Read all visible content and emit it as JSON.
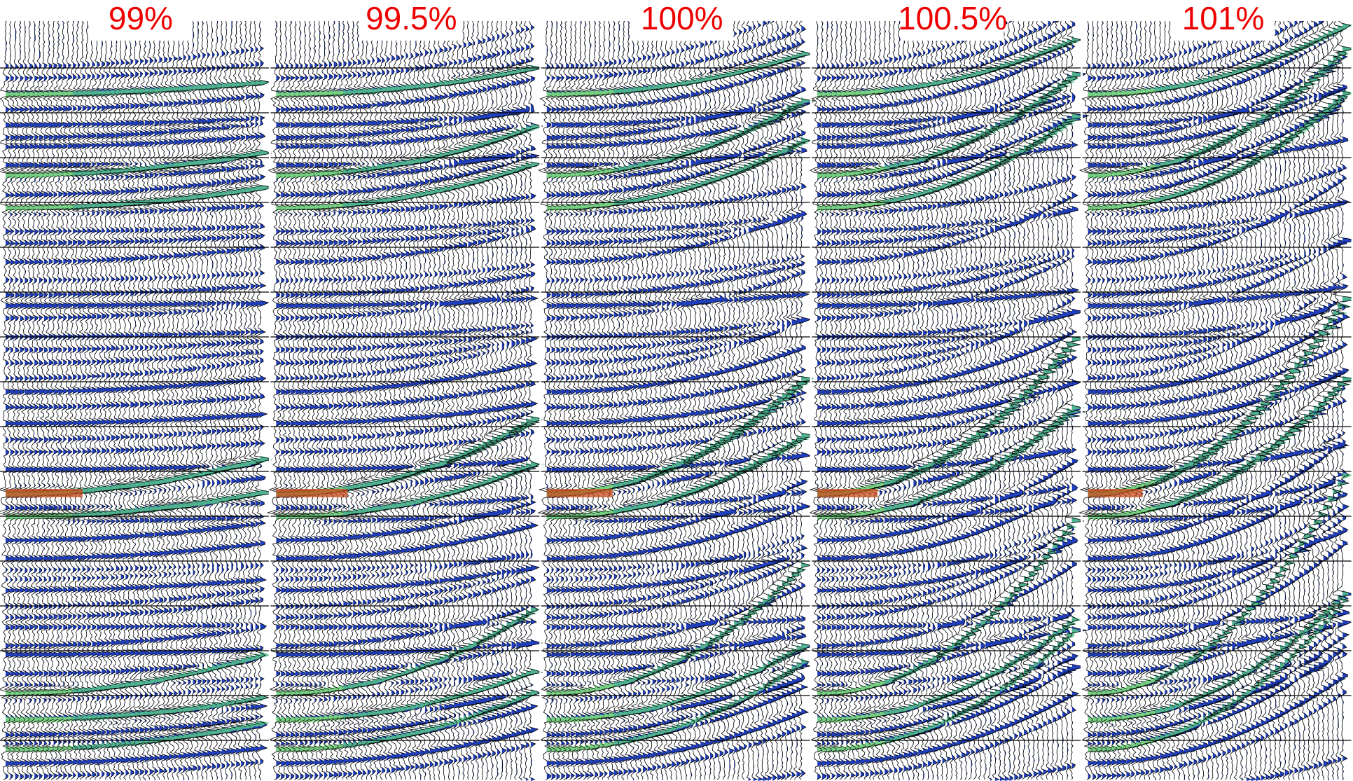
{
  "panels": [
    {
      "label": "99%"
    },
    {
      "label": "99.5%"
    },
    {
      "label": "100%"
    },
    {
      "label": "100.5%"
    },
    {
      "label": "101%"
    }
  ]
}
